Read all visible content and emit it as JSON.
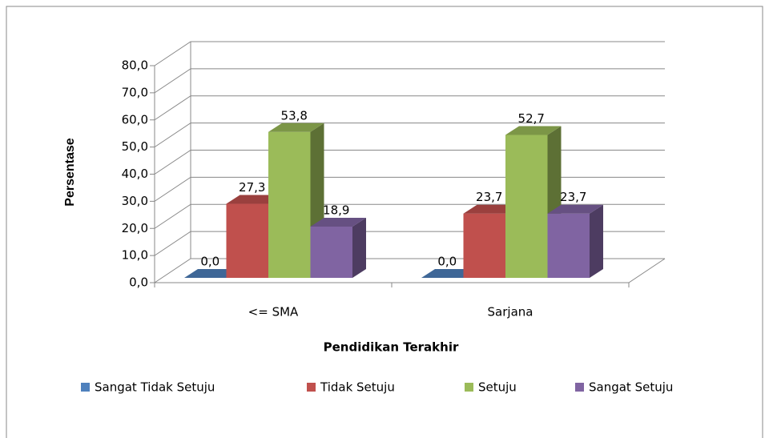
{
  "chart_data": {
    "type": "bar3d",
    "x_label": "Pendidikan Terakhir",
    "y_label": "Persentase",
    "categories": [
      "<= SMA",
      "Sarjana"
    ],
    "series": [
      {
        "name": "Sangat Tidak Setuju",
        "color": "#4f81bd",
        "values": [
          0.0,
          0.0
        ],
        "value_labels": [
          "0,0",
          "0,0"
        ]
      },
      {
        "name": "Tidak Setuju",
        "color": "#c0504d",
        "values": [
          27.3,
          23.7
        ],
        "value_labels": [
          "27,3",
          "23,7"
        ]
      },
      {
        "name": "Setuju",
        "color": "#9bbb59",
        "values": [
          53.8,
          52.7
        ],
        "value_labels": [
          "53,8",
          "52,7"
        ]
      },
      {
        "name": "Sangat Setuju",
        "color": "#8064a2",
        "values": [
          18.9,
          23.7
        ],
        "value_labels": [
          "18,9",
          "23,7"
        ]
      }
    ],
    "ylim": [
      0,
      80
    ],
    "yticks": [
      {
        "value": 0,
        "label": "0,0"
      },
      {
        "value": 10,
        "label": "10,0"
      },
      {
        "value": 20,
        "label": "20,0"
      },
      {
        "value": 30,
        "label": "30,0"
      },
      {
        "value": 40,
        "label": "40,0"
      },
      {
        "value": 50,
        "label": "50,0"
      },
      {
        "value": 60,
        "label": "60,0"
      },
      {
        "value": 70,
        "label": "70,0"
      },
      {
        "value": 80,
        "label": "80,0"
      }
    ],
    "grid": true,
    "legend": "bottom"
  }
}
